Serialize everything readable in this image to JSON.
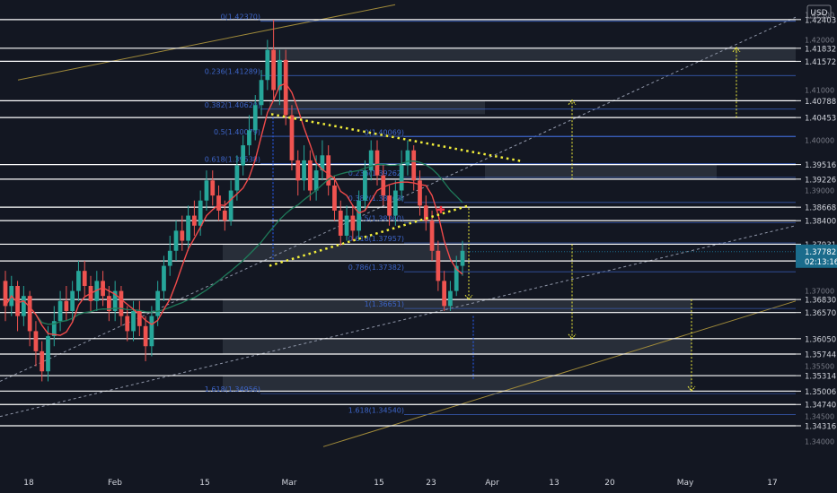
{
  "header": {
    "currency": "USD"
  },
  "colors": {
    "background": "#131722",
    "level_line": "#ffffff",
    "price_axis_text": "#d1d4dc",
    "candle_up": "#26a69a",
    "candle_down": "#ef5350",
    "ma_fast": "#f04a4a",
    "ma_slow": "#1f7a5a",
    "wedge_dots": "#f2ee3a",
    "channel_dash": "#8f96a8",
    "channel_upper": "#a08a3a",
    "fib_text": "#3d65c8",
    "zone_fill": "#3a414d",
    "current_badge": "#1a6c8c"
  },
  "chart_data": {
    "type": "candlestick",
    "symbol_currency": "USD",
    "x_tick_labels": [
      "18",
      "Feb",
      "15",
      "Mar",
      "15",
      "23",
      "Apr",
      "13",
      "20",
      "May",
      "17"
    ],
    "y_axis_labels": [
      "1.42500",
      "1.42000",
      "1.41000",
      "1.40000",
      "1.39000",
      "1.37000",
      "1.35500",
      "1.34500",
      "1.34000"
    ],
    "y_range": [
      1.3362,
      1.4265
    ],
    "levels": [
      1.42403,
      1.41832,
      1.41572,
      1.40788,
      1.40453,
      1.39516,
      1.39226,
      1.38668,
      1.384,
      1.37931,
      1.37597,
      1.3683,
      1.3657,
      1.3605,
      1.35744,
      1.35314,
      1.35006,
      1.3474,
      1.34316
    ],
    "level_labels": [
      "1.42403",
      "1.41832",
      "1.41572",
      "1.40788",
      "1.40453",
      "1.39516",
      "1.39226",
      "1.38668",
      "1.38400",
      "1.37931",
      "1.37597",
      "1.36830",
      "1.36570",
      "1.36050",
      "1.35744",
      "1.35314",
      "1.35006",
      "1.34740",
      "1.34316"
    ],
    "current_price": {
      "value": 1.37782,
      "label": "1.37782",
      "countdown": "02:13:16"
    },
    "fib_upper": [
      {
        "label": "0(1.42370)",
        "value": 1.4237
      },
      {
        "label": "0.236(1.41289)",
        "value": 1.41289
      },
      {
        "label": "0.382(1.40620)",
        "value": 1.4062
      },
      {
        "label": "0.5(1.40079)",
        "value": 1.40079
      },
      {
        "label": "0.618(1.39538)",
        "value": 1.39538
      }
    ],
    "fib_lower": [
      {
        "label": "0(1.40069)",
        "value": 1.40069
      },
      {
        "label": "0.236(1.39262)",
        "value": 1.39262
      },
      {
        "label": "0.382(1.38763)",
        "value": 1.38763
      },
      {
        "label": "0.5(1.38360)",
        "value": 1.3836
      },
      {
        "label": "0.618(1.37957)",
        "value": 1.37957
      },
      {
        "label": "0.786(1.37382)",
        "value": 1.37382
      },
      {
        "label": "1(1.36651)",
        "value": 1.36651
      },
      {
        "label": "1.618(1.34956)",
        "value": 1.34956
      },
      {
        "label": "1.618(1.34540)",
        "value": 1.3454
      }
    ],
    "candles": [
      [
        1.372,
        1.367,
        1.374,
        1.364
      ],
      [
        1.367,
        1.371,
        1.373,
        1.365
      ],
      [
        1.371,
        1.365,
        1.372,
        1.362
      ],
      [
        1.365,
        1.369,
        1.371,
        1.363
      ],
      [
        1.369,
        1.362,
        1.37,
        1.359
      ],
      [
        1.362,
        1.358,
        1.364,
        1.355
      ],
      [
        1.358,
        1.354,
        1.36,
        1.352
      ],
      [
        1.354,
        1.361,
        1.363,
        1.352
      ],
      [
        1.361,
        1.364,
        1.367,
        1.359
      ],
      [
        1.364,
        1.368,
        1.37,
        1.362
      ],
      [
        1.368,
        1.366,
        1.371,
        1.364
      ],
      [
        1.366,
        1.37,
        1.372,
        1.364
      ],
      [
        1.37,
        1.374,
        1.376,
        1.368
      ],
      [
        1.374,
        1.371,
        1.376,
        1.369
      ],
      [
        1.371,
        1.368,
        1.373,
        1.366
      ],
      [
        1.368,
        1.372,
        1.374,
        1.366
      ],
      [
        1.372,
        1.369,
        1.374,
        1.367
      ],
      [
        1.369,
        1.366,
        1.371,
        1.364
      ],
      [
        1.366,
        1.37,
        1.372,
        1.364
      ],
      [
        1.37,
        1.365,
        1.371,
        1.363
      ],
      [
        1.365,
        1.362,
        1.367,
        1.36
      ],
      [
        1.362,
        1.366,
        1.368,
        1.36
      ],
      [
        1.366,
        1.363,
        1.368,
        1.361
      ],
      [
        1.363,
        1.359,
        1.365,
        1.356
      ],
      [
        1.359,
        1.365,
        1.367,
        1.357
      ],
      [
        1.365,
        1.37,
        1.372,
        1.363
      ],
      [
        1.37,
        1.375,
        1.377,
        1.368
      ],
      [
        1.375,
        1.378,
        1.381,
        1.373
      ],
      [
        1.378,
        1.382,
        1.384,
        1.376
      ],
      [
        1.382,
        1.38,
        1.385,
        1.378
      ],
      [
        1.38,
        1.385,
        1.387,
        1.378
      ],
      [
        1.385,
        1.383,
        1.388,
        1.381
      ],
      [
        1.383,
        1.388,
        1.39,
        1.381
      ],
      [
        1.388,
        1.392,
        1.394,
        1.386
      ],
      [
        1.392,
        1.389,
        1.394,
        1.387
      ],
      [
        1.389,
        1.386,
        1.391,
        1.384
      ],
      [
        1.386,
        1.384,
        1.388,
        1.382
      ],
      [
        1.384,
        1.39,
        1.392,
        1.383
      ],
      [
        1.39,
        1.395,
        1.397,
        1.388
      ],
      [
        1.395,
        1.399,
        1.401,
        1.393
      ],
      [
        1.399,
        1.402,
        1.405,
        1.397
      ],
      [
        1.402,
        1.407,
        1.409,
        1.4
      ],
      [
        1.407,
        1.412,
        1.414,
        1.405
      ],
      [
        1.412,
        1.418,
        1.42,
        1.41
      ],
      [
        1.418,
        1.41,
        1.424,
        1.408
      ],
      [
        1.41,
        1.416,
        1.418,
        1.407
      ],
      [
        1.416,
        1.405,
        1.418,
        1.403
      ],
      [
        1.405,
        1.396,
        1.407,
        1.394
      ],
      [
        1.396,
        1.392,
        1.398,
        1.389
      ],
      [
        1.392,
        1.396,
        1.399,
        1.39
      ],
      [
        1.396,
        1.39,
        1.398,
        1.388
      ],
      [
        1.39,
        1.394,
        1.397,
        1.388
      ],
      [
        1.394,
        1.397,
        1.4,
        1.392
      ],
      [
        1.397,
        1.391,
        1.399,
        1.389
      ],
      [
        1.391,
        1.386,
        1.393,
        1.384
      ],
      [
        1.386,
        1.381,
        1.388,
        1.379
      ],
      [
        1.381,
        1.385,
        1.387,
        1.38
      ],
      [
        1.385,
        1.382,
        1.387,
        1.38
      ],
      [
        1.382,
        1.388,
        1.39,
        1.38
      ],
      [
        1.388,
        1.394,
        1.396,
        1.386
      ],
      [
        1.394,
        1.398,
        1.4,
        1.392
      ],
      [
        1.398,
        1.393,
        1.4,
        1.391
      ],
      [
        1.393,
        1.389,
        1.395,
        1.387
      ],
      [
        1.389,
        1.385,
        1.391,
        1.383
      ],
      [
        1.385,
        1.39,
        1.392,
        1.383
      ],
      [
        1.39,
        1.395,
        1.398,
        1.388
      ],
      [
        1.395,
        1.398,
        1.4,
        1.393
      ],
      [
        1.398,
        1.392,
        1.399,
        1.39
      ],
      [
        1.392,
        1.387,
        1.394,
        1.385
      ],
      [
        1.387,
        1.384,
        1.389,
        1.382
      ],
      [
        1.384,
        1.378,
        1.386,
        1.376
      ],
      [
        1.378,
        1.372,
        1.38,
        1.37
      ],
      [
        1.372,
        1.367,
        1.374,
        1.366
      ],
      [
        1.367,
        1.37,
        1.372,
        1.366
      ],
      [
        1.37,
        1.375,
        1.377,
        1.369
      ],
      [
        1.375,
        1.378,
        1.38,
        1.373
      ]
    ]
  }
}
